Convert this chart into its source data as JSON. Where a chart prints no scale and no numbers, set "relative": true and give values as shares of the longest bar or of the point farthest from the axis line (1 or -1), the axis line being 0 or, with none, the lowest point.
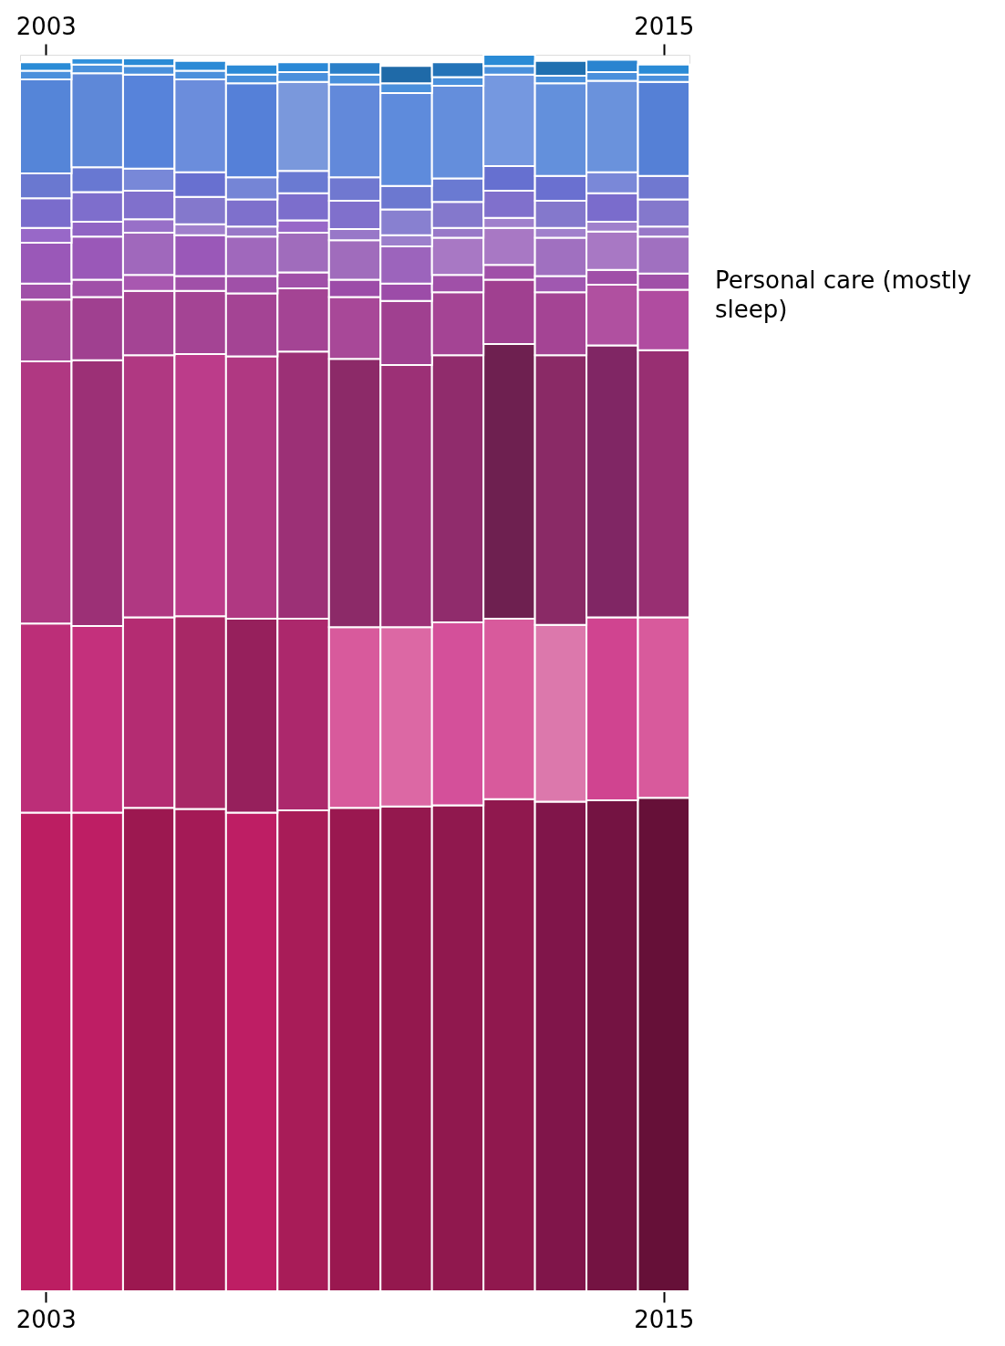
{
  "chart_data": {
    "type": "bar",
    "stacked": true,
    "relative": true,
    "x": [
      2003,
      2004,
      2005,
      2006,
      2007,
      2008,
      2009,
      2010,
      2011,
      2012,
      2013,
      2014,
      2015
    ],
    "xlim": [
      2002.5,
      2015.5
    ],
    "xticks": [
      2003,
      2015
    ],
    "x2lim": [
      2002.5,
      2015.5
    ],
    "x2ticks": [
      2003,
      2015
    ],
    "series": [
      {
        "values": [
          0.387,
          0.387,
          0.391,
          0.39,
          0.387,
          0.389,
          0.391,
          0.392,
          0.393,
          0.398,
          0.396,
          0.397,
          0.399
        ],
        "colors": [
          "#bc1e62",
          "#be1e64",
          "#9c1850",
          "#a41a56",
          "#be1e64",
          "#a81c58",
          "#9a1850",
          "#94184e",
          "#90184e",
          "#90184e",
          "#80154a",
          "#741342",
          "#661038"
        ]
      },
      {
        "values": [
          0.153,
          0.151,
          0.154,
          0.156,
          0.157,
          0.155,
          0.146,
          0.145,
          0.148,
          0.146,
          0.143,
          0.148,
          0.146
        ],
        "colors": [
          "#bc2e78",
          "#c4307c",
          "#b42c72",
          "#a82866",
          "#96205c",
          "#ac286c",
          "#d85a9c",
          "#dc68a4",
          "#d4509a",
          "#d85a9c",
          "#dc78ac",
          "#d04490",
          "#d85a9c"
        ]
      },
      {
        "values": [
          0.212,
          0.215,
          0.212,
          0.212,
          0.212,
          0.216,
          0.217,
          0.212,
          0.216,
          0.222,
          0.218,
          0.22,
          0.216
        ],
        "colors": [
          "#b03882",
          "#9c3076",
          "#b03882",
          "#bc3c8a",
          "#b03882",
          "#9c3076",
          "#8c2a68",
          "#9c3076",
          "#902c6c",
          "#6e2050",
          "#8a2a66",
          "#802664",
          "#982f72"
        ]
      },
      {
        "values": [
          0.05,
          0.051,
          0.052,
          0.051,
          0.051,
          0.051,
          0.05,
          0.052,
          0.051,
          0.052,
          0.051,
          0.049,
          0.049
        ],
        "colors": [
          "#a84898",
          "#a04090",
          "#a44494",
          "#a44494",
          "#a44494",
          "#a44494",
          "#a84898",
          "#a04090",
          "#a44494",
          "#a04090",
          "#a44494",
          "#b050a0",
          "#b04ca0"
        ]
      },
      {
        "values": [
          0.013,
          0.014,
          0.013,
          0.012,
          0.014,
          0.013,
          0.014,
          0.014,
          0.014,
          0.012,
          0.013,
          0.012,
          0.013
        ],
        "colors": [
          "#a050a8",
          "#a050a8",
          "#a858b0",
          "#a050a8",
          "#a050a8",
          "#a050a8",
          "#9c4ca8",
          "#9c4ca8",
          "#a050a8",
          "#a050a8",
          "#a058b0",
          "#a050a8",
          "#a050a8"
        ]
      },
      {
        "values": [
          0.033,
          0.035,
          0.034,
          0.033,
          0.032,
          0.032,
          0.032,
          0.03,
          0.03,
          0.03,
          0.031,
          0.031,
          0.03
        ],
        "colors": [
          "#9a58b8",
          "#9a58b8",
          "#a068bc",
          "#9a58b8",
          "#a068bc",
          "#a06cbc",
          "#a06cbc",
          "#9c64bc",
          "#a878c4",
          "#a878c4",
          "#a070c0",
          "#a878c4",
          "#a070c0"
        ]
      },
      {
        "values": [
          0.012,
          0.012,
          0.011,
          0.009,
          0.008,
          0.01,
          0.009,
          0.009,
          0.008,
          0.008,
          0.008,
          0.008,
          0.008
        ],
        "colors": [
          "#9868c8",
          "#9064c4",
          "#9870c8",
          "#a080cc",
          "#9878c8",
          "#9868c8",
          "#9878c8",
          "#9c80cc",
          "#9878c8",
          "#a080cc",
          "#a080cc",
          "#a080cc",
          "#9878c8"
        ]
      },
      {
        "values": [
          0.024,
          0.024,
          0.023,
          0.022,
          0.022,
          0.022,
          0.023,
          0.021,
          0.021,
          0.022,
          0.022,
          0.023,
          0.022
        ],
        "colors": [
          "#7a6ccc",
          "#7e6ecc",
          "#8070cc",
          "#8478cc",
          "#7e70cc",
          "#7c6ecc",
          "#8070cc",
          "#8880d0",
          "#8478cc",
          "#8070cc",
          "#8478cc",
          "#7a6ccc",
          "#8478cc"
        ]
      },
      {
        "values": [
          0.02,
          0.02,
          0.018,
          0.02,
          0.018,
          0.018,
          0.019,
          0.019,
          0.019,
          0.02,
          0.02,
          0.017,
          0.019
        ],
        "colors": [
          "#6a78d0",
          "#6878d2",
          "#7888d8",
          "#6870d0",
          "#7585d6",
          "#6a7ad2",
          "#7078d0",
          "#6c78d0",
          "#6a7ad2",
          "#6670d0",
          "#6a70d0",
          "#7a88d8",
          "#7078d0"
        ]
      },
      {
        "values": [
          0.076,
          0.076,
          0.076,
          0.075,
          0.076,
          0.072,
          0.075,
          0.075,
          0.075,
          0.074,
          0.075,
          0.074,
          0.076
        ],
        "colors": [
          "#5585d8",
          "#5e88d8",
          "#5783da",
          "#6b8ddc",
          "#5580d8",
          "#7a98dc",
          "#6289da",
          "#5e8bdc",
          "#648edc",
          "#7598e0",
          "#6390dc",
          "#6a92dc",
          "#5580d6"
        ]
      },
      {
        "values": [
          0.007,
          0.007,
          0.007,
          0.007,
          0.007,
          0.008,
          0.008,
          0.008,
          0.007,
          0.007,
          0.006,
          0.007,
          0.006
        ],
        "colors": [
          "#4a90dc",
          "#4a90dc",
          "#4a90dc",
          "#4a90dc",
          "#4a90dc",
          "#4a90dc",
          "#4a90dc",
          "#4a90dc",
          "#4a90dc",
          "#4a90dc",
          "#4a90dc",
          "#4a90dc",
          "#4a90dc"
        ]
      },
      {
        "values": [
          0.007,
          0.005,
          0.006,
          0.008,
          0.008,
          0.008,
          0.01,
          0.014,
          0.012,
          0.009,
          0.012,
          0.01,
          0.008
        ],
        "colors": [
          "#2a8bd6",
          "#3090dc",
          "#2a8bd6",
          "#2b8ad6",
          "#2b8ad6",
          "#2a88d6",
          "#2a7fc8",
          "#1f6aa8",
          "#2373b8",
          "#2a8bd6",
          "#2070b0",
          "#2a84d0",
          "#2a8bd6"
        ]
      }
    ],
    "annotations": [
      "Personal care (mostly sleep)"
    ]
  }
}
